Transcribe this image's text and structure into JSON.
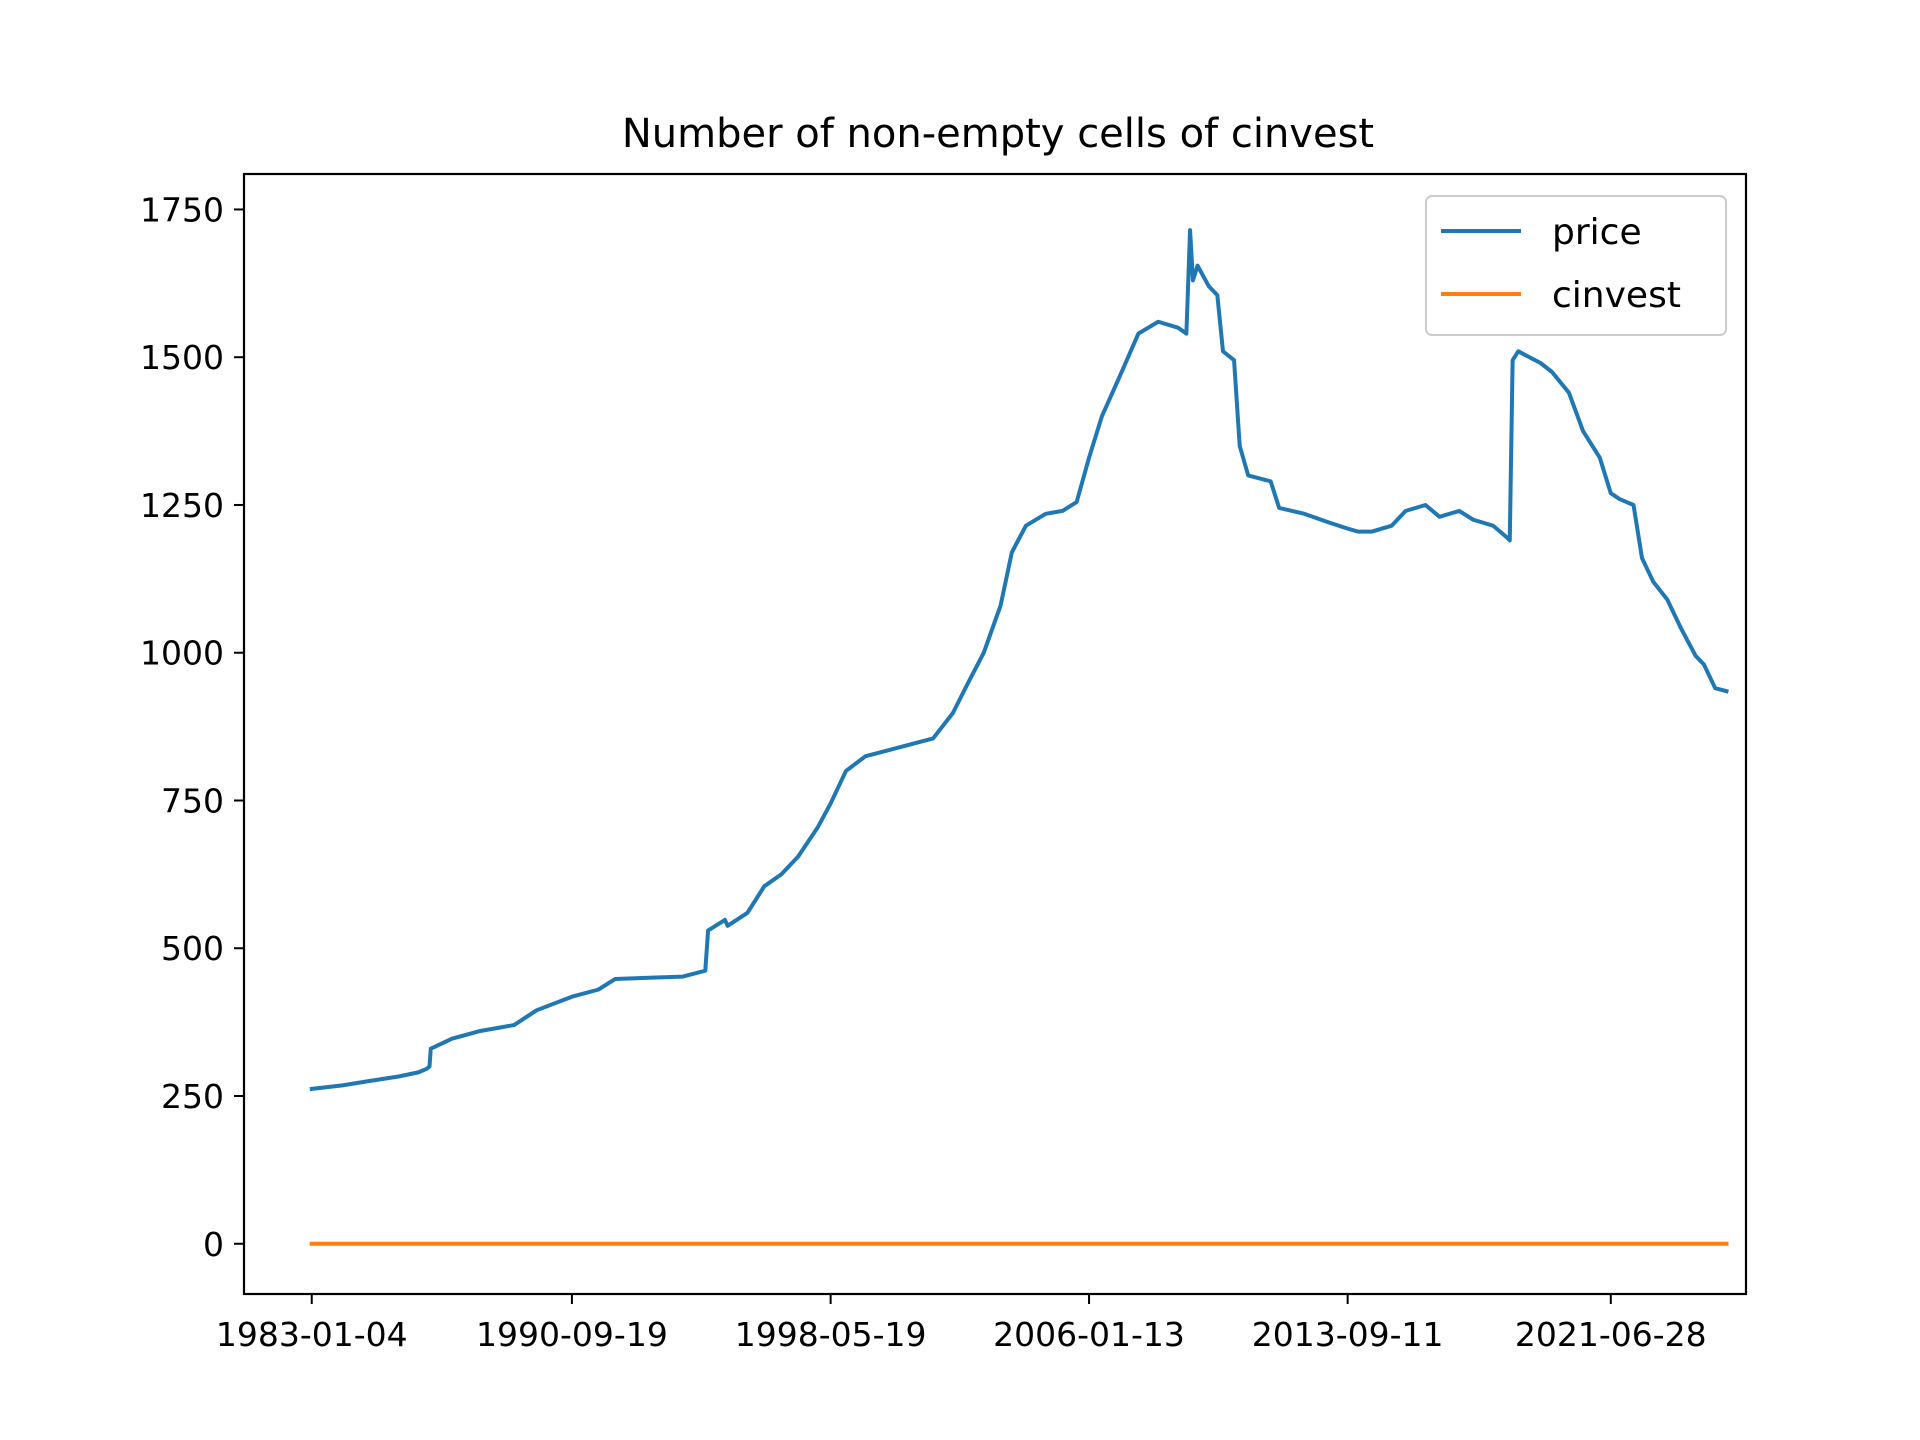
{
  "chart_data": {
    "type": "line",
    "title": "Number of non-empty cells of cinvest",
    "xlabel": "",
    "ylabel": "",
    "x_tick_labels": [
      "1983-01-04",
      "1990-09-19",
      "1998-05-19",
      "2006-01-13",
      "2013-09-11",
      "2021-06-28"
    ],
    "y_tick_labels": [
      "0",
      "250",
      "500",
      "750",
      "1000",
      "1250",
      "1500",
      "1750"
    ],
    "xlim": [
      "1981-01-01",
      "2025-06-30"
    ],
    "ylim": [
      -85,
      1810
    ],
    "grid": false,
    "legend_position": "top-right",
    "series": [
      {
        "name": "price",
        "color": "#1f77b4",
        "points": [
          [
            "1983-01-04",
            262
          ],
          [
            "1983-12-01",
            268
          ],
          [
            "1984-09-01",
            275
          ],
          [
            "1985-08-01",
            283
          ],
          [
            "1986-03-01",
            290
          ],
          [
            "1986-06-01",
            296
          ],
          [
            "1986-07-01",
            300
          ],
          [
            "1986-07-15",
            330
          ],
          [
            "1987-03-01",
            347
          ],
          [
            "1988-01-01",
            360
          ],
          [
            "1989-01-01",
            370
          ],
          [
            "1989-09-01",
            395
          ],
          [
            "1990-09-19",
            418
          ],
          [
            "1991-07-01",
            430
          ],
          [
            "1992-01-01",
            448
          ],
          [
            "1993-01-01",
            450
          ],
          [
            "1994-01-01",
            452
          ],
          [
            "1994-09-01",
            462
          ],
          [
            "1994-10-01",
            530
          ],
          [
            "1995-04-01",
            548
          ],
          [
            "1995-05-01",
            538
          ],
          [
            "1995-12-01",
            560
          ],
          [
            "1996-06-01",
            605
          ],
          [
            "1996-12-01",
            625
          ],
          [
            "1997-06-01",
            655
          ],
          [
            "1998-01-01",
            705
          ],
          [
            "1998-05-19",
            745
          ],
          [
            "1998-11-01",
            800
          ],
          [
            "1999-06-01",
            825
          ],
          [
            "2000-06-01",
            840
          ],
          [
            "2001-06-01",
            855
          ],
          [
            "2002-01-01",
            898
          ],
          [
            "2002-06-01",
            945
          ],
          [
            "2002-12-01",
            1000
          ],
          [
            "2003-06-01",
            1080
          ],
          [
            "2003-10-01",
            1170
          ],
          [
            "2004-03-01",
            1215
          ],
          [
            "2004-10-01",
            1235
          ],
          [
            "2005-04-01",
            1240
          ],
          [
            "2005-09-01",
            1255
          ],
          [
            "2006-01-13",
            1330
          ],
          [
            "2006-06-01",
            1400
          ],
          [
            "2007-01-01",
            1475
          ],
          [
            "2007-07-01",
            1540
          ],
          [
            "2008-02-01",
            1560
          ],
          [
            "2008-09-01",
            1550
          ],
          [
            "2008-12-01",
            1540
          ],
          [
            "2009-01-10",
            1715
          ],
          [
            "2009-02-10",
            1630
          ],
          [
            "2009-04-01",
            1655
          ],
          [
            "2009-08-01",
            1620
          ],
          [
            "2009-11-01",
            1605
          ],
          [
            "2010-01-01",
            1510
          ],
          [
            "2010-05-01",
            1495
          ],
          [
            "2010-07-01",
            1350
          ],
          [
            "2010-10-01",
            1300
          ],
          [
            "2011-06-01",
            1290
          ],
          [
            "2011-09-01",
            1245
          ],
          [
            "2012-06-01",
            1235
          ],
          [
            "2013-03-01",
            1220
          ],
          [
            "2013-09-11",
            1210
          ],
          [
            "2014-01-01",
            1205
          ],
          [
            "2014-06-01",
            1205
          ],
          [
            "2015-01-01",
            1215
          ],
          [
            "2015-06-01",
            1240
          ],
          [
            "2016-01-01",
            1250
          ],
          [
            "2016-06-01",
            1230
          ],
          [
            "2017-01-01",
            1240
          ],
          [
            "2017-06-01",
            1225
          ],
          [
            "2018-01-01",
            1215
          ],
          [
            "2018-06-01",
            1195
          ],
          [
            "2018-07-01",
            1190
          ],
          [
            "2018-08-01",
            1495
          ],
          [
            "2018-10-01",
            1510
          ],
          [
            "2019-06-01",
            1490
          ],
          [
            "2019-10-01",
            1475
          ],
          [
            "2020-04-01",
            1440
          ],
          [
            "2020-09-01",
            1375
          ],
          [
            "2021-03-01",
            1330
          ],
          [
            "2021-06-28",
            1270
          ],
          [
            "2021-10-01",
            1260
          ],
          [
            "2022-03-01",
            1250
          ],
          [
            "2022-06-01",
            1160
          ],
          [
            "2022-10-01",
            1120
          ],
          [
            "2023-03-01",
            1090
          ],
          [
            "2023-08-01",
            1040
          ],
          [
            "2024-01-01",
            995
          ],
          [
            "2024-04-01",
            980
          ],
          [
            "2024-08-01",
            940
          ],
          [
            "2024-12-01",
            935
          ]
        ]
      },
      {
        "name": "cinvest",
        "color": "#ff7f0e",
        "points": [
          [
            "1983-01-04",
            0
          ],
          [
            "2024-12-01",
            0
          ]
        ]
      }
    ]
  }
}
